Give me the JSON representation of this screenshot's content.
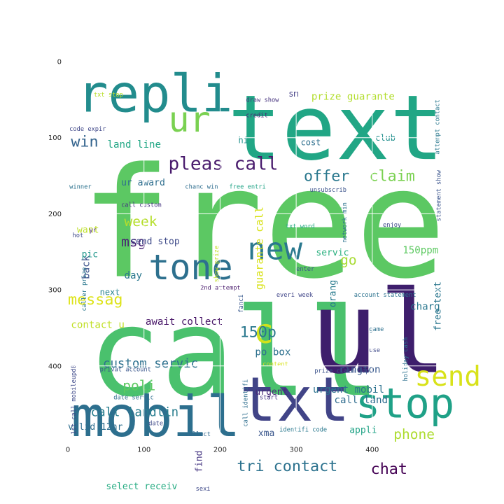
{
  "chart_data": {
    "type": "wordcloud",
    "title": "",
    "xlabel": "",
    "ylabel": "",
    "xlim": [
      0,
      500
    ],
    "ylim": [
      500,
      0
    ],
    "grid": true,
    "x_ticks": [
      "0",
      "100",
      "200",
      "300",
      "400"
    ],
    "y_ticks": [
      "0",
      "100",
      "200",
      "300",
      "400"
    ],
    "words": [
      {
        "text": "free",
        "x": 16,
        "y": 282,
        "size": 200,
        "color": "#5cc863"
      },
      {
        "text": "call",
        "x": 26,
        "y": 438,
        "size": 160,
        "color": "#4ac16d"
      },
      {
        "text": "text",
        "x": 210,
        "y": 128,
        "size": 118,
        "color": "#21a685"
      },
      {
        "text": "ul",
        "x": 318,
        "y": 408,
        "size": 150,
        "color": "#3e1e6c"
      },
      {
        "text": "repli",
        "x": 12,
        "y": 66,
        "size": 68,
        "color": "#228c8d"
      },
      {
        "text": "mobil",
        "x": 4,
        "y": 492,
        "size": 74,
        "color": "#2d6f8e"
      },
      {
        "text": "txt",
        "x": 226,
        "y": 472,
        "size": 80,
        "color": "#414487"
      },
      {
        "text": "stop",
        "x": 378,
        "y": 468,
        "size": 54,
        "color": "#1fa187"
      },
      {
        "text": "tone",
        "x": 106,
        "y": 286,
        "size": 46,
        "color": "#2d708e"
      },
      {
        "text": "ur",
        "x": 132,
        "y": 92,
        "size": 46,
        "color": "#7ad151"
      },
      {
        "text": "new",
        "x": 236,
        "y": 260,
        "size": 40,
        "color": "#2a788e"
      },
      {
        "text": "send",
        "x": 456,
        "y": 426,
        "size": 36,
        "color": "#d8e219"
      },
      {
        "text": "c",
        "x": 244,
        "y": 370,
        "size": 44,
        "color": "#d1e21b"
      },
      {
        "text": "pleas call",
        "x": 132,
        "y": 142,
        "size": 24,
        "color": "#481a6c"
      },
      {
        "text": "offer",
        "x": 310,
        "y": 157,
        "size": 20,
        "color": "#2a788e"
      },
      {
        "text": "claim",
        "x": 396,
        "y": 157,
        "size": 20,
        "color": "#7ad151"
      },
      {
        "text": "messag",
        "x": 0,
        "y": 319,
        "size": 20,
        "color": "#dde318"
      },
      {
        "text": "150p",
        "x": 226,
        "y": 362,
        "size": 20,
        "color": "#2a788e"
      },
      {
        "text": "custom servic",
        "x": 46,
        "y": 402,
        "size": 16,
        "color": "#2d718e"
      },
      {
        "text": "win",
        "x": 4,
        "y": 112,
        "size": 20,
        "color": "#33638d"
      },
      {
        "text": "week",
        "x": 74,
        "y": 216,
        "size": 18,
        "color": "#b5de2b"
      },
      {
        "text": "msg",
        "x": 70,
        "y": 243,
        "size": 18,
        "color": "#482173"
      },
      {
        "text": "go",
        "x": 358,
        "y": 267,
        "size": 18,
        "color": "#a8db34"
      },
      {
        "text": "poli",
        "x": 72,
        "y": 432,
        "size": 18,
        "color": "#5ec962"
      },
      {
        "text": "phone",
        "x": 428,
        "y": 496,
        "size": 18,
        "color": "#addc30"
      },
      {
        "text": "call landlin",
        "x": 30,
        "y": 466,
        "size": 16,
        "color": "#287d8e"
      },
      {
        "text": "tri contact",
        "x": 222,
        "y": 538,
        "size": 20,
        "color": "#2c728e"
      },
      {
        "text": "chat",
        "x": 398,
        "y": 542,
        "size": 20,
        "color": "#440154"
      },
      {
        "text": "guarante call",
        "x": 256,
        "y": 300,
        "size": 14,
        "color": "#d8e219",
        "rotate": true
      },
      {
        "text": "prize guarante",
        "x": 320,
        "y": 50,
        "size": 13,
        "color": "#b2dd2d"
      },
      {
        "text": "land line",
        "x": 52,
        "y": 113,
        "size": 13,
        "color": "#22a785"
      },
      {
        "text": "ur award",
        "x": 70,
        "y": 163,
        "size": 12,
        "color": "#2e6e8e"
      },
      {
        "text": "send stop",
        "x": 82,
        "y": 240,
        "size": 12,
        "color": "#3e4a89"
      },
      {
        "text": "await collect",
        "x": 102,
        "y": 346,
        "size": 13,
        "color": "#481668"
      },
      {
        "text": "contact u",
        "x": 4,
        "y": 350,
        "size": 13,
        "color": "#c0df25"
      },
      {
        "text": "urgent mobil",
        "x": 322,
        "y": 435,
        "size": 13,
        "color": "#2c728e"
      },
      {
        "text": "call land",
        "x": 350,
        "y": 449,
        "size": 13,
        "color": "#2f6c8e"
      },
      {
        "text": "rington",
        "x": 356,
        "y": 409,
        "size": 13,
        "color": "#38588c"
      },
      {
        "text": "po box",
        "x": 246,
        "y": 386,
        "size": 13,
        "color": "#2d708e"
      },
      {
        "text": "urgent",
        "x": 246,
        "y": 438,
        "size": 12,
        "color": "#482878"
      },
      {
        "text": "charg",
        "x": 450,
        "y": 326,
        "size": 13,
        "color": "#2a778e"
      },
      {
        "text": "150ppm",
        "x": 440,
        "y": 252,
        "size": 13,
        "color": "#5ec962"
      },
      {
        "text": "servic",
        "x": 326,
        "y": 255,
        "size": 12,
        "color": "#2ab07f"
      },
      {
        "text": "orang",
        "x": 352,
        "y": 323,
        "size": 12,
        "color": "#297b8e",
        "rotate": true
      },
      {
        "text": "free text",
        "x": 490,
        "y": 354,
        "size": 12,
        "color": "#2a768e",
        "rotate": true
      },
      {
        "text": "valid 12hr",
        "x": 0,
        "y": 484,
        "size": 12,
        "color": "#2e6e8e"
      },
      {
        "text": "select receiv",
        "x": 50,
        "y": 562,
        "size": 12,
        "color": "#25ab82"
      },
      {
        "text": "find",
        "x": 176,
        "y": 540,
        "size": 12,
        "color": "#453581",
        "rotate": true
      },
      {
        "text": "xma",
        "x": 250,
        "y": 492,
        "size": 12,
        "color": "#39568c"
      },
      {
        "text": "appli",
        "x": 370,
        "y": 488,
        "size": 12,
        "color": "#20a386"
      },
      {
        "text": "back",
        "x": 28,
        "y": 286,
        "size": 13,
        "color": "#3b528b",
        "rotate": true
      },
      {
        "text": "day",
        "x": 74,
        "y": 285,
        "size": 13,
        "color": "#2a788e"
      },
      {
        "text": "pic",
        "x": 18,
        "y": 257,
        "size": 12,
        "color": "#1f968b"
      },
      {
        "text": "want",
        "x": 12,
        "y": 225,
        "size": 12,
        "color": "#bddf26"
      },
      {
        "text": "next",
        "x": 42,
        "y": 307,
        "size": 11,
        "color": "#26828e"
      },
      {
        "text": "cost",
        "x": 306,
        "y": 110,
        "size": 11,
        "color": "#2e6f8e"
      },
      {
        "text": "club",
        "x": 404,
        "y": 104,
        "size": 11,
        "color": "#218f8d"
      },
      {
        "text": "hi",
        "x": 224,
        "y": 107,
        "size": 11,
        "color": "#20928c"
      },
      {
        "text": "sm",
        "x": 290,
        "y": 46,
        "size": 11,
        "color": "#433e85"
      },
      {
        "text": "txt stop",
        "x": 34,
        "y": 46,
        "size": 8,
        "color": "#b8de29"
      },
      {
        "text": "draw show",
        "x": 234,
        "y": 53,
        "size": 8,
        "color": "#46327e"
      },
      {
        "text": "credit",
        "x": 234,
        "y": 73,
        "size": 8,
        "color": "#482677"
      },
      {
        "text": "code expir",
        "x": 2,
        "y": 91,
        "size": 8,
        "color": "#3f4788"
      },
      {
        "text": "winner",
        "x": 2,
        "y": 167,
        "size": 8,
        "color": "#2c728e"
      },
      {
        "text": "chanc win",
        "x": 154,
        "y": 167,
        "size": 8,
        "color": "#2e6d8e"
      },
      {
        "text": "free entri",
        "x": 212,
        "y": 167,
        "size": 8,
        "color": "#20a386"
      },
      {
        "text": "unsubscrib",
        "x": 318,
        "y": 171,
        "size": 8,
        "color": "#3b528b"
      },
      {
        "text": "call custom",
        "x": 70,
        "y": 191,
        "size": 8,
        "color": "#453581"
      },
      {
        "text": "txt word",
        "x": 286,
        "y": 219,
        "size": 8,
        "color": "#25ab82"
      },
      {
        "text": "enjoy",
        "x": 414,
        "y": 217,
        "size": 8,
        "color": "#3e4989"
      },
      {
        "text": "network min",
        "x": 366,
        "y": 238,
        "size": 8,
        "color": "#2c728e",
        "rotate": true
      },
      {
        "text": "hot",
        "x": 6,
        "y": 231,
        "size": 8,
        "color": "#3e4989"
      },
      {
        "text": "yr",
        "x": 28,
        "y": 224,
        "size": 8,
        "color": "#482677"
      },
      {
        "text": "caller prize",
        "x": 24,
        "y": 328,
        "size": 8,
        "color": "#2a788e",
        "rotate": true
      },
      {
        "text": "show prize",
        "x": 198,
        "y": 290,
        "size": 8,
        "color": "#c2df23",
        "rotate": true
      },
      {
        "text": "enter",
        "x": 300,
        "y": 275,
        "size": 8,
        "color": "#3a548c"
      },
      {
        "text": "2nd attempt",
        "x": 174,
        "y": 300,
        "size": 8,
        "color": "#481a6c"
      },
      {
        "text": "fanci",
        "x": 230,
        "y": 330,
        "size": 8,
        "color": "#38588c",
        "rotate": true
      },
      {
        "text": "everi week",
        "x": 274,
        "y": 309,
        "size": 8,
        "color": "#404588"
      },
      {
        "text": "account statement",
        "x": 376,
        "y": 309,
        "size": 8,
        "color": "#2c728e"
      },
      {
        "text": "game",
        "x": 396,
        "y": 354,
        "size": 8,
        "color": "#2d708e"
      },
      {
        "text": "use",
        "x": 396,
        "y": 382,
        "size": 8,
        "color": "#3e4989"
      },
      {
        "text": "holiday cash",
        "x": 446,
        "y": 420,
        "size": 8,
        "color": "#2c718e",
        "rotate": true
      },
      {
        "text": "prize claim top",
        "x": 324,
        "y": 409,
        "size": 8,
        "color": "#3b528b"
      },
      {
        "text": "privat account",
        "x": 42,
        "y": 407,
        "size": 8,
        "color": "#39568c"
      },
      {
        "text": "1st call mobileupd8",
        "x": 10,
        "y": 490,
        "size": 8,
        "color": "#3e4989",
        "rotate": true
      },
      {
        "text": "date servic",
        "x": 60,
        "y": 444,
        "size": 8,
        "color": "#2e6e8e"
      },
      {
        "text": "date",
        "x": 106,
        "y": 478,
        "size": 8,
        "color": "#3e4989"
      },
      {
        "text": "call identifi",
        "x": 236,
        "y": 480,
        "size": 8,
        "color": "#2e6e8e",
        "rotate": true
      },
      {
        "text": "start",
        "x": 252,
        "y": 444,
        "size": 8,
        "color": "#453581"
      },
      {
        "text": "content",
        "x": 256,
        "y": 400,
        "size": 8,
        "color": "#d8e219"
      },
      {
        "text": "identifi code",
        "x": 278,
        "y": 486,
        "size": 8,
        "color": "#2a788e"
      },
      {
        "text": "collect",
        "x": 154,
        "y": 492,
        "size": 8,
        "color": "#31688e"
      },
      {
        "text": "sexi",
        "x": 168,
        "y": 564,
        "size": 8,
        "color": "#3e4989"
      },
      {
        "text": "attempt contact",
        "x": 488,
        "y": 122,
        "size": 8,
        "color": "#2a788e",
        "rotate": true
      },
      {
        "text": "statement show",
        "x": 490,
        "y": 210,
        "size": 8,
        "color": "#3a548c",
        "rotate": true
      }
    ]
  }
}
